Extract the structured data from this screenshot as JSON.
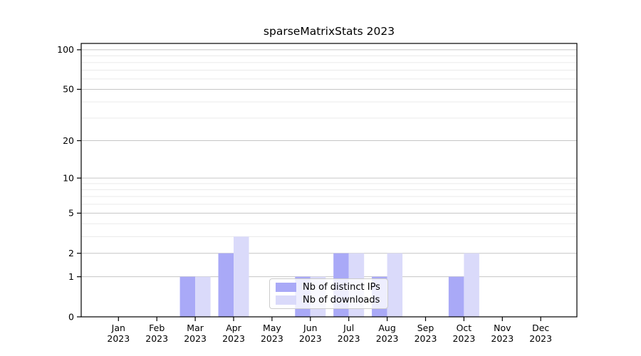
{
  "chart_data": {
    "type": "bar",
    "title": "sparseMatrixStats 2023",
    "months": [
      "Jan",
      "Feb",
      "Mar",
      "Apr",
      "May",
      "Jun",
      "Jul",
      "Aug",
      "Sep",
      "Oct",
      "Nov",
      "Dec"
    ],
    "year_label": "2023",
    "series": [
      {
        "name": "Nb of distinct IPs",
        "color": "#a9a9f7",
        "values": [
          0,
          0,
          1,
          2,
          0,
          1,
          2,
          1,
          0,
          1,
          0,
          0
        ]
      },
      {
        "name": "Nb of downloads",
        "color": "#dadafa",
        "values": [
          0,
          0,
          1,
          3,
          0,
          1,
          2,
          2,
          0,
          2,
          0,
          0
        ]
      }
    ],
    "y_axis": {
      "scale": "log1p",
      "major_ticks": [
        0,
        1,
        2,
        5,
        10,
        20,
        50,
        100
      ],
      "minor_gridlines": [
        3,
        4,
        6,
        7,
        8,
        9,
        30,
        40,
        60,
        70,
        80,
        90
      ],
      "max_value": 111.7
    },
    "grid": "horizontal",
    "legend_position": "lower-center",
    "colors": {
      "major_grid": "#c6c6c6",
      "minor_grid": "#eaeaea",
      "axis": "#000000",
      "text": "#000000"
    }
  }
}
